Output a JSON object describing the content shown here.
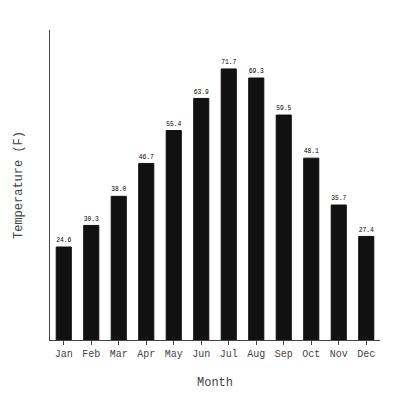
{
  "chart_data": {
    "type": "bar",
    "categories": [
      "Jan",
      "Feb",
      "Mar",
      "Apr",
      "May",
      "Jun",
      "Jul",
      "Aug",
      "Sep",
      "Oct",
      "Nov",
      "Dec"
    ],
    "values": [
      24.6,
      30.3,
      38.0,
      46.7,
      55.4,
      63.9,
      71.7,
      69.3,
      59.5,
      48.1,
      35.7,
      27.4
    ],
    "value_labels": [
      "24.6",
      "30.3",
      "38.0",
      "46.7",
      "55.4",
      "63.9",
      "71.7",
      "69.3",
      "59.5",
      "48.1",
      "35.7",
      "27.4"
    ],
    "color": "#111111",
    "xlabel": "Month",
    "ylabel": "Temperature (F)",
    "ylim": [
      0,
      82
    ],
    "grid": false,
    "data_labels": true,
    "tick_labels": "x"
  }
}
